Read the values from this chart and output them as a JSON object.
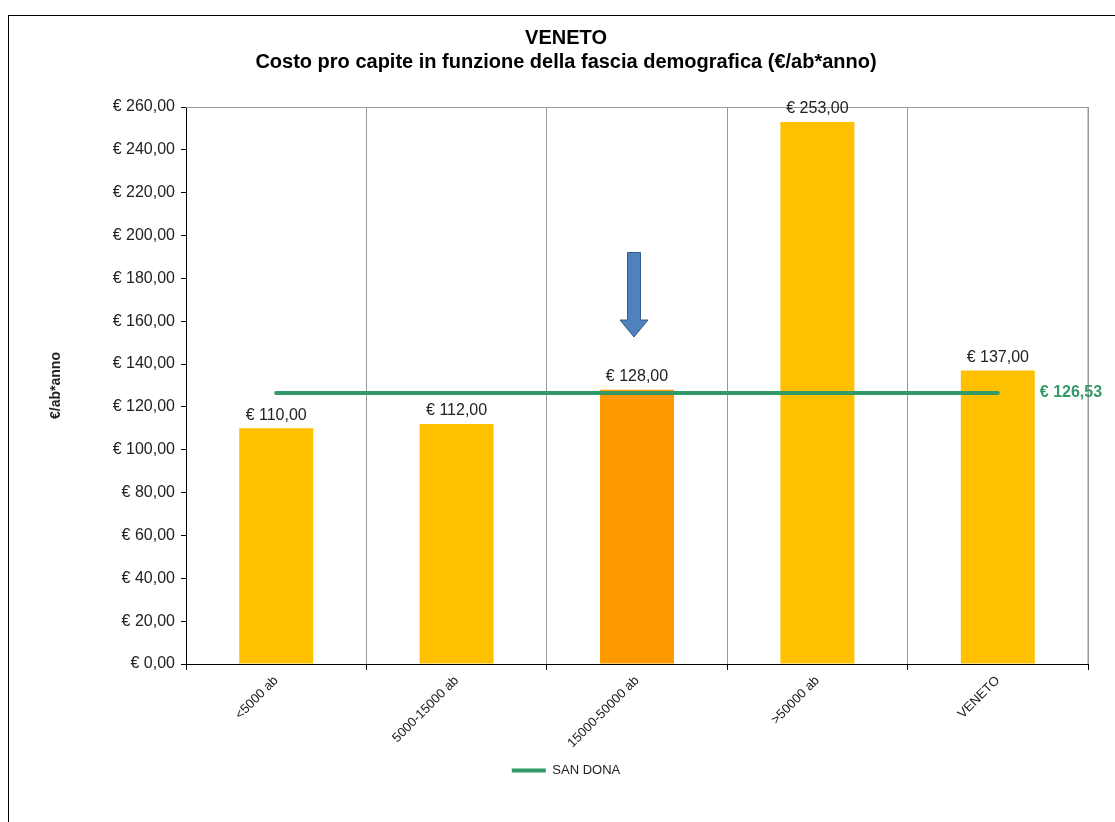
{
  "chart_data": {
    "type": "bar",
    "title": "VENETO",
    "subtitle": "Costo pro capite in funzione della fascia demografica (€/ab*anno)",
    "ylabel": "€/ab*anno",
    "categories": [
      "<5000 ab",
      "5000-15000 ab",
      "15000-50000 ab",
      ">50000 ab",
      "VENETO"
    ],
    "series": [
      {
        "colors": [
          "#ffc000",
          "#ffc000",
          "#ff9900",
          "#ffc000",
          "#ffc000"
        ],
        "values": [
          110,
          112,
          128,
          253,
          137
        ],
        "value_labels": [
          "€ 110,00",
          "€ 112,00",
          "€ 128,00",
          "€ 253,00",
          "€ 137,00"
        ]
      },
      {
        "type": "line",
        "name": "SAN DONA",
        "color": "#339966",
        "marker": "none",
        "values": [
          126.53,
          126.53,
          126.53,
          126.53,
          126.53
        ]
      }
    ],
    "annotations": [
      {
        "text": "€ 126,53",
        "x": "VENETO",
        "y": 126.53
      }
    ],
    "ylim": [
      0,
      260
    ],
    "yticks": [
      {
        "value": 0,
        "label": "€ 0,00"
      },
      {
        "value": 20,
        "label": "€ 20,00"
      },
      {
        "value": 40,
        "label": "€ 40,00"
      },
      {
        "value": 60,
        "label": "€ 60,00"
      },
      {
        "value": 80,
        "label": "€ 80,00"
      },
      {
        "value": 100,
        "label": "€ 100,00"
      },
      {
        "value": 120,
        "label": "€ 120,00"
      },
      {
        "value": 140,
        "label": "€ 140,00"
      },
      {
        "value": 160,
        "label": "€ 160,00"
      },
      {
        "value": 180,
        "label": "€ 180,00"
      },
      {
        "value": 200,
        "label": "€ 200,00"
      },
      {
        "value": 220,
        "label": "€ 220,00"
      },
      {
        "value": 240,
        "label": "€ 240,00"
      },
      {
        "value": 260,
        "label": "€ 260,00"
      }
    ],
    "grid": "x",
    "legend": "bottom"
  }
}
